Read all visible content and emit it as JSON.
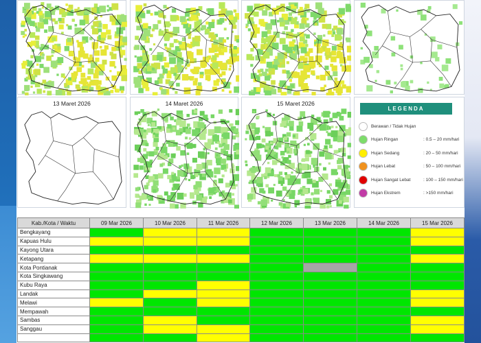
{
  "maps": [
    {
      "date": "",
      "fill": "mixed-yellow"
    },
    {
      "date": "",
      "fill": "mixed-yellow"
    },
    {
      "date": "",
      "fill": "mixed-yellow"
    },
    {
      "date": "",
      "fill": "sparse-green"
    },
    {
      "date": "13 Maret 2026",
      "fill": "empty"
    },
    {
      "date": "14 Maret 2026",
      "fill": "green"
    },
    {
      "date": "15 Maret 2026",
      "fill": "green"
    }
  ],
  "legend": {
    "title": "LEGENDA",
    "items": [
      {
        "label": "Berawan / Tidak Hujan",
        "range": "",
        "color": "#ffffff"
      },
      {
        "label": "Hujan Ringan",
        "range": ": 0.5 – 20 mm/hari",
        "color": "#7ddc6a"
      },
      {
        "label": "Hujan Sedang",
        "range": ": 20 – 50 mm/hari",
        "color": "#ffee00"
      },
      {
        "label": "Hujan Lebat",
        "range": ": 50 – 100 mm/hari",
        "color": "#f0921e"
      },
      {
        "label": "Hujan Sangat Lebat",
        "range": ": 100 – 150 mm/hari",
        "color": "#e00000"
      },
      {
        "label": "Hujan Ekstrem",
        "range": ": >150 mm/hari",
        "color": "#c13ca6"
      }
    ]
  },
  "table": {
    "header_region": "Kab./Kota / Waktu",
    "dates": [
      "09 Mar 2026",
      "10 Mar 2026",
      "11 Mar 2026",
      "12 Mar 2026",
      "13 Mar 2026",
      "14 Mar 2026",
      "15 Mar 2026"
    ],
    "rows": [
      {
        "region": "Bengkayang",
        "cells": [
          "g",
          "y",
          "y",
          "g",
          "g",
          "g",
          "y"
        ]
      },
      {
        "region": "Kapuas Hulu",
        "cells": [
          "y",
          "y",
          "y",
          "g",
          "g",
          "g",
          "y"
        ]
      },
      {
        "region": "Kayong Utara",
        "cells": [
          "g",
          "g",
          "g",
          "g",
          "g",
          "g",
          "g"
        ]
      },
      {
        "region": "Ketapang",
        "cells": [
          "y",
          "y",
          "y",
          "g",
          "g",
          "g",
          "y"
        ]
      },
      {
        "region": "Kota Pontianak",
        "cells": [
          "g",
          "g",
          "g",
          "g",
          "gr",
          "g",
          "g"
        ]
      },
      {
        "region": "Kota Singkawang",
        "cells": [
          "g",
          "g",
          "g",
          "g",
          "g",
          "g",
          "g"
        ]
      },
      {
        "region": "Kubu Raya",
        "cells": [
          "g",
          "g",
          "y",
          "g",
          "g",
          "g",
          "g"
        ]
      },
      {
        "region": "Landak",
        "cells": [
          "g",
          "y",
          "y",
          "g",
          "g",
          "g",
          "y"
        ]
      },
      {
        "region": "Melawi",
        "cells": [
          "y",
          "g",
          "y",
          "g",
          "g",
          "g",
          "y"
        ]
      },
      {
        "region": "Mempawah",
        "cells": [
          "g",
          "g",
          "g",
          "g",
          "g",
          "g",
          "g"
        ]
      },
      {
        "region": "Sambas",
        "cells": [
          "g",
          "y",
          "g",
          "g",
          "g",
          "g",
          "y"
        ]
      },
      {
        "region": "Sanggau",
        "cells": [
          "g",
          "y",
          "y",
          "g",
          "g",
          "g",
          "y"
        ]
      },
      {
        "region": "",
        "cells": [
          "g",
          "g",
          "y",
          "g",
          "g",
          "g",
          "g"
        ]
      }
    ]
  },
  "colors": {
    "green": "#00e600",
    "yellow": "#ffff00",
    "gray": "#a6a6a6"
  }
}
